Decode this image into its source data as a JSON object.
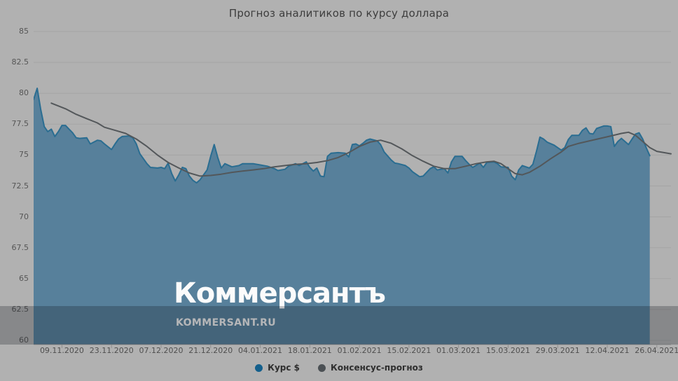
{
  "title": "Прогноз аналитиков по курсу доллара",
  "watermark": {
    "brand": "Коммерсантъ",
    "site": "KOMMERSANT.RU"
  },
  "legend": {
    "items": [
      {
        "label": "Курс $",
        "color": "#135f8c"
      },
      {
        "label": "Консенсус-прогноз",
        "color": "#4b5054"
      }
    ]
  },
  "colors": {
    "background": "#b1b1b1",
    "gridline": "#a5a5a5",
    "axis": "#8f8f8f",
    "rate_line": "#2a6d91",
    "rate_fill": "#57809b",
    "consensus_line": "#53575a",
    "dim_band": "rgba(10,16,24,0.25)",
    "title_text": "#3d3d3d",
    "tick_text": "#565656"
  },
  "chart_data": {
    "type": "area",
    "title": "Прогноз аналитиков по курсу доллара",
    "xlabel": "",
    "ylabel": "",
    "grid": true,
    "legend_position": "bottom",
    "ylim": [
      60,
      85
    ],
    "yticks": [
      85,
      82.5,
      80,
      77.5,
      75,
      72.5,
      70,
      67.5,
      65,
      62.5,
      60
    ],
    "xticks": [
      "09.11.2020",
      "23.11.2020",
      "07.12.2020",
      "21.12.2020",
      "04.01.2021",
      "18.01.2021",
      "01.02.2021",
      "15.02.2021",
      "01.03.2021",
      "15.03.2021",
      "29.03.2021",
      "12.04.2021",
      "26.04.2021"
    ],
    "x_range": [
      "01.11.2020",
      "30.04.2021"
    ],
    "series": [
      {
        "name": "Курс $",
        "type": "area",
        "line_color": "#2a6d91",
        "fill_color": "#57809b",
        "points": [
          [
            "01.11.2020",
            79.5
          ],
          [
            "02.11.2020",
            80.4
          ],
          [
            "03.11.2020",
            78.7
          ],
          [
            "04.11.2020",
            77.3
          ],
          [
            "05.11.2020",
            76.9
          ],
          [
            "06.11.2020",
            77.1
          ],
          [
            "07.11.2020",
            76.5
          ],
          [
            "08.11.2020",
            76.9
          ],
          [
            "09.11.2020",
            77.4
          ],
          [
            "10.11.2020",
            77.4
          ],
          [
            "11.11.2020",
            77.1
          ],
          [
            "12.11.2020",
            76.8
          ],
          [
            "13.11.2020",
            76.4
          ],
          [
            "14.11.2020",
            76.35
          ],
          [
            "16.11.2020",
            76.4
          ],
          [
            "17.11.2020",
            75.9
          ],
          [
            "19.11.2020",
            76.2
          ],
          [
            "20.11.2020",
            76.15
          ],
          [
            "21.11.2020",
            75.9
          ],
          [
            "23.11.2020",
            75.45
          ],
          [
            "24.11.2020",
            75.9
          ],
          [
            "25.11.2020",
            76.3
          ],
          [
            "26.11.2020",
            76.5
          ],
          [
            "28.11.2020",
            76.55
          ],
          [
            "29.11.2020",
            76.4
          ],
          [
            "30.11.2020",
            75.9
          ],
          [
            "01.12.2020",
            75.1
          ],
          [
            "03.12.2020",
            74.3
          ],
          [
            "04.12.2020",
            74.0
          ],
          [
            "06.12.2020",
            73.95
          ],
          [
            "07.12.2020",
            74.0
          ],
          [
            "08.12.2020",
            73.9
          ],
          [
            "09.12.2020",
            74.35
          ],
          [
            "10.12.2020",
            73.5
          ],
          [
            "11.12.2020",
            72.9
          ],
          [
            "12.12.2020",
            73.4
          ],
          [
            "13.12.2020",
            74.0
          ],
          [
            "14.12.2020",
            73.9
          ],
          [
            "15.12.2020",
            73.3
          ],
          [
            "16.12.2020",
            72.95
          ],
          [
            "17.12.2020",
            72.75
          ],
          [
            "18.12.2020",
            73.0
          ],
          [
            "20.12.2020",
            73.8
          ],
          [
            "21.12.2020",
            74.9
          ],
          [
            "22.12.2020",
            75.85
          ],
          [
            "23.12.2020",
            74.8
          ],
          [
            "24.12.2020",
            73.95
          ],
          [
            "25.12.2020",
            74.3
          ],
          [
            "27.12.2020",
            74.05
          ],
          [
            "29.12.2020",
            74.15
          ],
          [
            "30.12.2020",
            74.3
          ],
          [
            "02.01.2021",
            74.3
          ],
          [
            "04.01.2021",
            74.2
          ],
          [
            "06.01.2021",
            74.1
          ],
          [
            "08.01.2021",
            73.9
          ],
          [
            "09.01.2021",
            73.75
          ],
          [
            "11.01.2021",
            73.85
          ],
          [
            "12.01.2021",
            74.1
          ],
          [
            "14.01.2021",
            74.3
          ],
          [
            "15.01.2021",
            74.15
          ],
          [
            "17.01.2021",
            74.45
          ],
          [
            "18.01.2021",
            74.0
          ],
          [
            "19.01.2021",
            73.7
          ],
          [
            "20.01.2021",
            73.95
          ],
          [
            "21.01.2021",
            73.3
          ],
          [
            "22.01.2021",
            73.25
          ],
          [
            "23.01.2021",
            74.9
          ],
          [
            "24.01.2021",
            75.15
          ],
          [
            "26.01.2021",
            75.2
          ],
          [
            "28.01.2021",
            75.15
          ],
          [
            "29.01.2021",
            74.85
          ],
          [
            "30.01.2021",
            75.85
          ],
          [
            "31.01.2021",
            75.9
          ],
          [
            "01.02.2021",
            75.75
          ],
          [
            "02.02.2021",
            75.95
          ],
          [
            "03.02.2021",
            76.2
          ],
          [
            "04.02.2021",
            76.3
          ],
          [
            "06.02.2021",
            76.15
          ],
          [
            "07.02.2021",
            75.85
          ],
          [
            "08.02.2021",
            75.25
          ],
          [
            "10.02.2021",
            74.6
          ],
          [
            "11.02.2021",
            74.35
          ],
          [
            "12.02.2021",
            74.3
          ],
          [
            "14.02.2021",
            74.15
          ],
          [
            "15.02.2021",
            73.95
          ],
          [
            "16.02.2021",
            73.65
          ],
          [
            "18.02.2021",
            73.25
          ],
          [
            "19.02.2021",
            73.3
          ],
          [
            "20.02.2021",
            73.6
          ],
          [
            "21.02.2021",
            73.9
          ],
          [
            "22.02.2021",
            74.05
          ],
          [
            "23.02.2021",
            73.8
          ],
          [
            "25.02.2021",
            73.9
          ],
          [
            "26.02.2021",
            73.55
          ],
          [
            "27.02.2021",
            74.45
          ],
          [
            "28.02.2021",
            74.9
          ],
          [
            "02.03.2021",
            74.9
          ],
          [
            "03.03.2021",
            74.55
          ],
          [
            "04.03.2021",
            74.25
          ],
          [
            "05.03.2021",
            74.0
          ],
          [
            "07.03.2021",
            74.35
          ],
          [
            "08.03.2021",
            74.0
          ],
          [
            "09.03.2021",
            74.4
          ],
          [
            "11.03.2021",
            74.45
          ],
          [
            "12.03.2021",
            74.3
          ],
          [
            "13.03.2021",
            74.05
          ],
          [
            "15.03.2021",
            74.0
          ],
          [
            "16.03.2021",
            73.3
          ],
          [
            "17.03.2021",
            73.0
          ],
          [
            "18.03.2021",
            73.8
          ],
          [
            "19.03.2021",
            74.15
          ],
          [
            "21.03.2021",
            73.95
          ],
          [
            "22.03.2021",
            74.25
          ],
          [
            "23.03.2021",
            75.3
          ],
          [
            "24.03.2021",
            76.45
          ],
          [
            "25.03.2021",
            76.3
          ],
          [
            "26.03.2021",
            76.05
          ],
          [
            "28.03.2021",
            75.8
          ],
          [
            "29.03.2021",
            75.6
          ],
          [
            "30.03.2021",
            75.4
          ],
          [
            "31.03.2021",
            75.6
          ],
          [
            "01.04.2021",
            76.25
          ],
          [
            "02.04.2021",
            76.6
          ],
          [
            "04.04.2021",
            76.6
          ],
          [
            "05.04.2021",
            77.0
          ],
          [
            "06.04.2021",
            77.2
          ],
          [
            "07.04.2021",
            76.75
          ],
          [
            "08.04.2021",
            76.7
          ],
          [
            "09.04.2021",
            77.15
          ],
          [
            "11.04.2021",
            77.35
          ],
          [
            "12.04.2021",
            77.35
          ],
          [
            "13.04.2021",
            77.3
          ],
          [
            "14.04.2021",
            75.7
          ],
          [
            "15.04.2021",
            76.1
          ],
          [
            "16.04.2021",
            76.35
          ],
          [
            "18.04.2021",
            75.85
          ],
          [
            "19.04.2021",
            76.3
          ],
          [
            "20.04.2021",
            76.7
          ],
          [
            "21.04.2021",
            76.8
          ],
          [
            "22.04.2021",
            76.3
          ],
          [
            "23.04.2021",
            75.6
          ],
          [
            "24.04.2021",
            74.95
          ]
        ]
      },
      {
        "name": "Консенсус-прогноз",
        "type": "line",
        "line_color": "#53575a",
        "points": [
          [
            "06.11.2020",
            79.2
          ],
          [
            "10.11.2020",
            78.75
          ],
          [
            "13.11.2020",
            78.3
          ],
          [
            "16.11.2020",
            77.95
          ],
          [
            "19.11.2020",
            77.6
          ],
          [
            "21.11.2020",
            77.25
          ],
          [
            "24.11.2020",
            77.0
          ],
          [
            "27.11.2020",
            76.75
          ],
          [
            "30.11.2020",
            76.3
          ],
          [
            "03.12.2020",
            75.7
          ],
          [
            "06.12.2020",
            75.0
          ],
          [
            "09.12.2020",
            74.4
          ],
          [
            "12.12.2020",
            73.95
          ],
          [
            "15.12.2020",
            73.55
          ],
          [
            "18.12.2020",
            73.3
          ],
          [
            "21.12.2020",
            73.35
          ],
          [
            "24.12.2020",
            73.45
          ],
          [
            "27.12.2020",
            73.6
          ],
          [
            "30.12.2020",
            73.7
          ],
          [
            "02.01.2021",
            73.8
          ],
          [
            "05.01.2021",
            73.9
          ],
          [
            "08.01.2021",
            74.05
          ],
          [
            "11.01.2021",
            74.15
          ],
          [
            "14.01.2021",
            74.25
          ],
          [
            "17.01.2021",
            74.3
          ],
          [
            "20.01.2021",
            74.4
          ],
          [
            "23.01.2021",
            74.55
          ],
          [
            "26.01.2021",
            74.8
          ],
          [
            "29.01.2021",
            75.2
          ],
          [
            "01.02.2021",
            75.7
          ],
          [
            "04.02.2021",
            76.05
          ],
          [
            "07.02.2021",
            76.2
          ],
          [
            "10.02.2021",
            75.95
          ],
          [
            "13.02.2021",
            75.5
          ],
          [
            "16.02.2021",
            74.95
          ],
          [
            "19.02.2021",
            74.5
          ],
          [
            "22.02.2021",
            74.1
          ],
          [
            "25.02.2021",
            73.9
          ],
          [
            "28.02.2021",
            73.9
          ],
          [
            "03.03.2021",
            74.1
          ],
          [
            "06.03.2021",
            74.3
          ],
          [
            "09.03.2021",
            74.45
          ],
          [
            "11.03.2021",
            74.5
          ],
          [
            "13.03.2021",
            74.3
          ],
          [
            "15.03.2021",
            73.9
          ],
          [
            "17.03.2021",
            73.5
          ],
          [
            "19.03.2021",
            73.4
          ],
          [
            "21.03.2021",
            73.6
          ],
          [
            "24.03.2021",
            74.1
          ],
          [
            "27.03.2021",
            74.7
          ],
          [
            "30.03.2021",
            75.25
          ],
          [
            "01.04.2021",
            75.7
          ],
          [
            "04.04.2021",
            75.95
          ],
          [
            "07.04.2021",
            76.15
          ],
          [
            "10.04.2021",
            76.35
          ],
          [
            "13.04.2021",
            76.55
          ],
          [
            "16.04.2021",
            76.75
          ],
          [
            "18.04.2021",
            76.85
          ],
          [
            "20.04.2021",
            76.6
          ],
          [
            "22.04.2021",
            76.1
          ],
          [
            "24.04.2021",
            75.6
          ],
          [
            "26.04.2021",
            75.3
          ],
          [
            "28.04.2021",
            75.2
          ],
          [
            "30.04.2021",
            75.1
          ]
        ]
      }
    ]
  }
}
